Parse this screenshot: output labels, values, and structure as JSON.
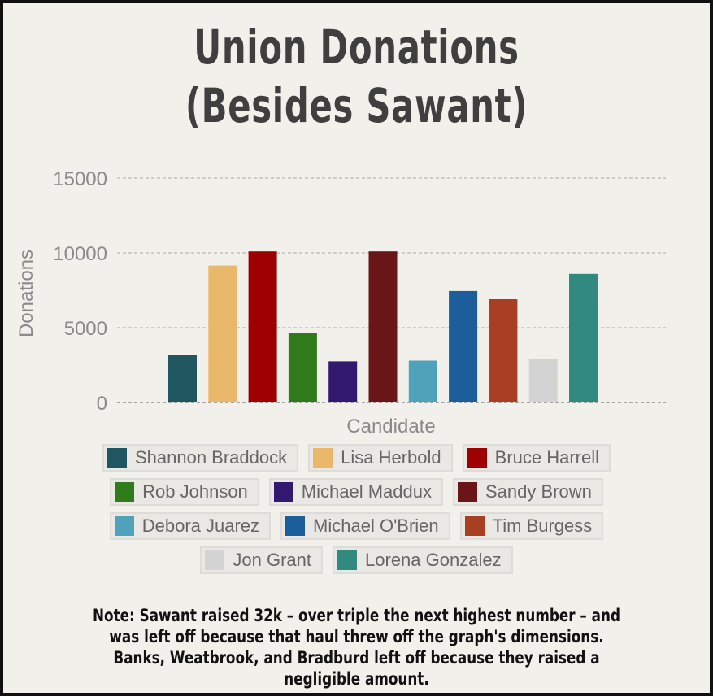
{
  "chart_data": {
    "type": "bar",
    "title_line1": "Union Donations",
    "title_line2": "(Besides Sawant)",
    "xlabel": "Candidate",
    "ylabel": "Donations",
    "ylim": [
      0,
      15000
    ],
    "yticks": [
      "0",
      "5000",
      "10000",
      "15000"
    ],
    "grid": true,
    "legend_position": "bottom",
    "categories": [
      "Shannon Braddock",
      "Lisa Herbold",
      "Bruce Harrell",
      "Rob Johnson",
      "Michael Maddux",
      "Sandy Brown",
      "Debora Juarez",
      "Michael O'Brien",
      "Tim Burgess",
      "Jon Grant",
      "Lorena Gonzalez"
    ],
    "values": [
      3150,
      9150,
      10100,
      4650,
      2750,
      10100,
      2800,
      7450,
      6900,
      2900,
      8600
    ],
    "colors": [
      "#1f5660",
      "#eab86a",
      "#9e0002",
      "#2f7a1a",
      "#33186f",
      "#6a1616",
      "#4ea3bb",
      "#1b5e9b",
      "#a83f22",
      "#d3d3d3",
      "#318a7f"
    ],
    "note": "Note: Sawant raised 32k – over triple the next highest number – and was left off because that haul threw off the graph's dimensions. Banks, Weatbrook, and Bradburd left off because they raised a negligible amount."
  }
}
